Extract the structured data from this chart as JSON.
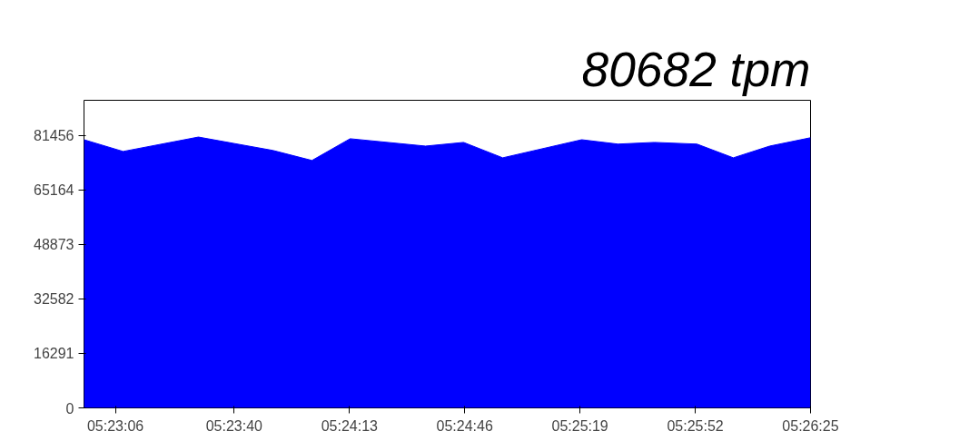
{
  "chart_data": {
    "type": "area",
    "title": "80682 tpm",
    "x": [
      5.3825,
      5.38561,
      5.3916,
      5.39752,
      5.40063,
      5.40366,
      5.40966,
      5.41269,
      5.4158,
      5.42208,
      5.42497,
      5.42786,
      5.43125,
      5.43414,
      5.43703,
      5.44028
    ],
    "series": [
      {
        "color": "#0000ff",
        "values": [
          80200,
          76700,
          81000,
          77000,
          74000,
          80500,
          78300,
          79400,
          74800,
          80200,
          78900,
          79400,
          78900,
          74800,
          78300,
          80800
        ]
      }
    ],
    "xlim": [
      5.3825,
      5.44028
    ],
    "xticks": [
      {
        "value": 5.385,
        "label": "05:23:06"
      },
      {
        "value": 5.394444,
        "label": "05:23:40"
      },
      {
        "value": 5.403611,
        "label": "05:24:13"
      },
      {
        "value": 5.412778,
        "label": "05:24:46"
      },
      {
        "value": 5.421944,
        "label": "05:25:19"
      },
      {
        "value": 5.431111,
        "label": "05:25:52"
      },
      {
        "value": 5.440278,
        "label": "05:26:25"
      }
    ],
    "ylim": [
      0,
      92000
    ],
    "yticks": [
      0,
      16291,
      32582,
      48873,
      65164,
      81456
    ],
    "grid": false
  }
}
